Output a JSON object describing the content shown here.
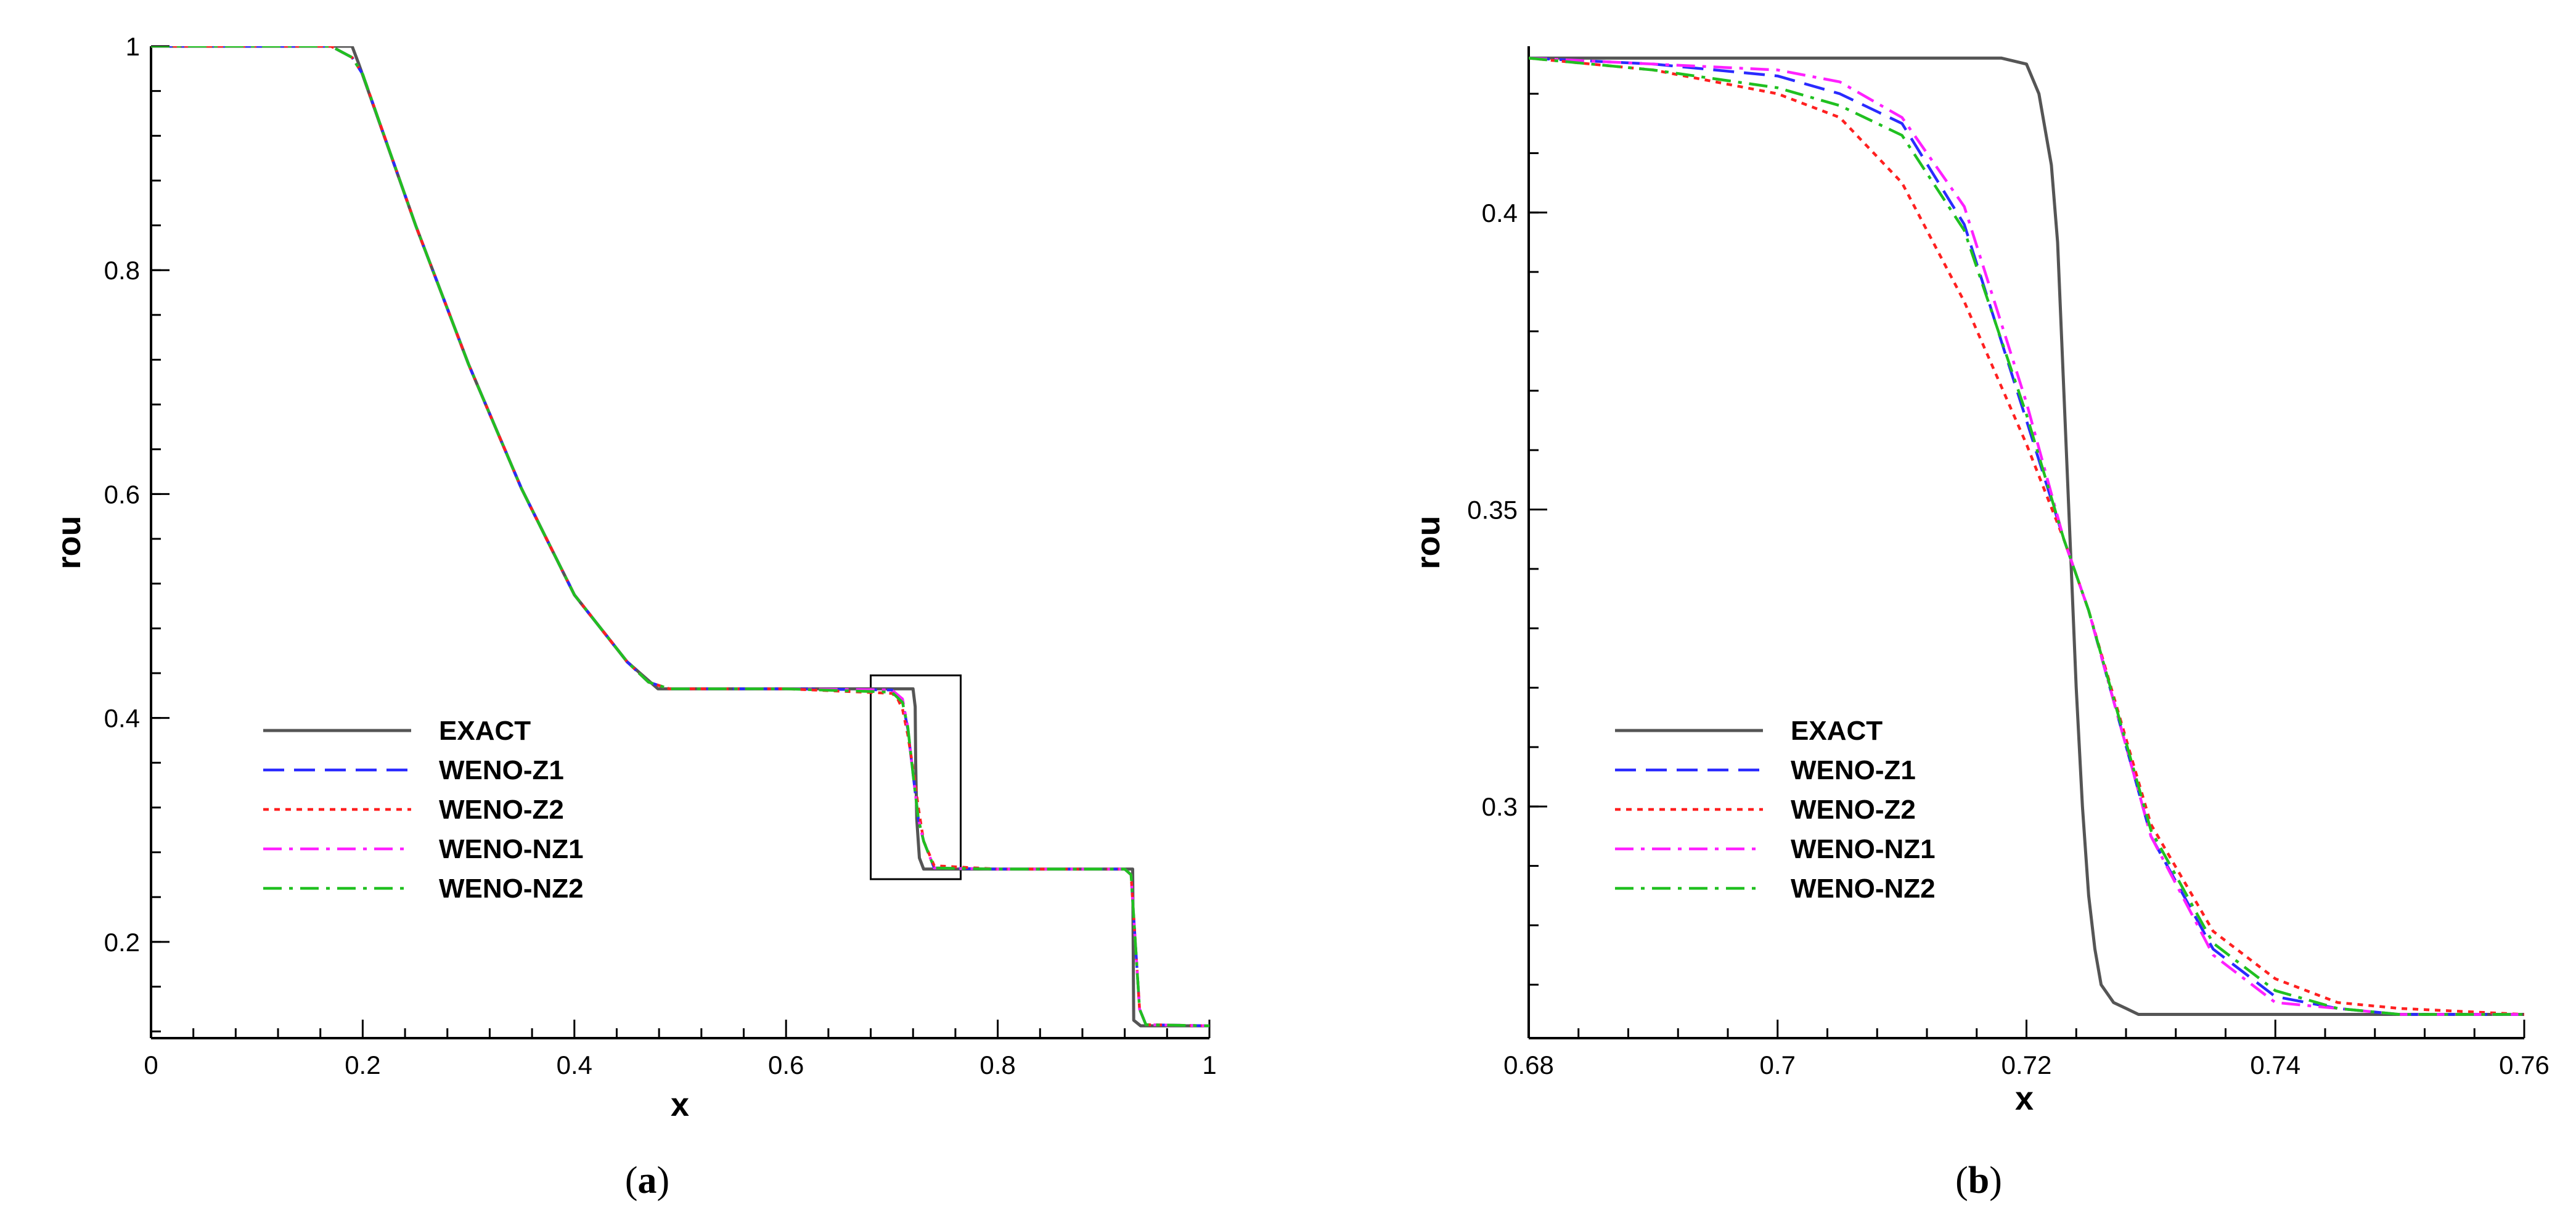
{
  "colors": {
    "EXACT": "#555555",
    "WENO-Z1": "#2a2aff",
    "WENO-Z2": "#ff2020",
    "WENO-NZ1": "#ff20ff",
    "WENO-NZ2": "#20c020"
  },
  "chart_data": [
    {
      "type": "line",
      "caption": {
        "open": "(",
        "letter": "a",
        "close": ")"
      },
      "xlabel": "x",
      "ylabel": "rou",
      "xlim": [
        0,
        1
      ],
      "ylim": [
        0.114,
        1.0
      ],
      "xticks": [
        0,
        0.2,
        0.4,
        0.6,
        0.8,
        1
      ],
      "xtick_labels": [
        "0",
        "0.2",
        "0.4",
        "0.6",
        "0.8",
        "1"
      ],
      "yticks": [
        0.2,
        0.4,
        0.6,
        0.8,
        1
      ],
      "ytick_labels": [
        "0.2",
        "0.4",
        "0.6",
        "0.8",
        "1"
      ],
      "legend_position": "lower-left",
      "inset_box": {
        "x": [
          0.68,
          0.765
        ],
        "y": [
          0.256,
          0.438
        ]
      },
      "series": [
        {
          "name": "EXACT",
          "style": "solid",
          "x": [
            0,
            0.19,
            0.196,
            0.25,
            0.3,
            0.35,
            0.4,
            0.45,
            0.479,
            0.5,
            0.6,
            0.72,
            0.722,
            0.7225,
            0.7235,
            0.726,
            0.73,
            0.8,
            0.92,
            0.9275,
            0.9285,
            0.935,
            1.0
          ],
          "y": [
            1.0,
            1.0,
            0.985,
            0.84,
            0.716,
            0.605,
            0.51,
            0.45,
            0.426,
            0.426,
            0.426,
            0.426,
            0.41,
            0.36,
            0.31,
            0.275,
            0.265,
            0.265,
            0.265,
            0.265,
            0.13,
            0.125,
            0.125
          ]
        },
        {
          "name": "WENO-Z1",
          "style": "dash",
          "x": [
            0,
            0.17,
            0.19,
            0.2,
            0.25,
            0.3,
            0.35,
            0.4,
            0.45,
            0.47,
            0.49,
            0.5,
            0.6,
            0.7,
            0.71,
            0.715,
            0.72,
            0.725,
            0.73,
            0.74,
            0.8,
            0.92,
            0.926,
            0.93,
            0.934,
            0.94,
            1.0
          ],
          "y": [
            1.0,
            1.0,
            0.99,
            0.975,
            0.84,
            0.716,
            0.605,
            0.51,
            0.45,
            0.432,
            0.426,
            0.426,
            0.426,
            0.425,
            0.415,
            0.39,
            0.35,
            0.31,
            0.29,
            0.266,
            0.265,
            0.265,
            0.26,
            0.2,
            0.14,
            0.126,
            0.125
          ]
        },
        {
          "name": "WENO-Z2",
          "style": "dot",
          "x": [
            0,
            0.17,
            0.19,
            0.2,
            0.25,
            0.3,
            0.35,
            0.4,
            0.45,
            0.47,
            0.49,
            0.5,
            0.6,
            0.7,
            0.705,
            0.71,
            0.715,
            0.72,
            0.725,
            0.73,
            0.74,
            0.8,
            0.92,
            0.926,
            0.93,
            0.934,
            0.94,
            1.0
          ],
          "y": [
            1.0,
            1.0,
            0.99,
            0.975,
            0.84,
            0.716,
            0.605,
            0.51,
            0.45,
            0.432,
            0.426,
            0.426,
            0.426,
            0.422,
            0.418,
            0.408,
            0.385,
            0.355,
            0.32,
            0.29,
            0.268,
            0.265,
            0.265,
            0.26,
            0.2,
            0.14,
            0.126,
            0.125
          ]
        },
        {
          "name": "WENO-NZ1",
          "style": "dashdot",
          "x": [
            0,
            0.17,
            0.19,
            0.2,
            0.25,
            0.3,
            0.35,
            0.4,
            0.45,
            0.47,
            0.49,
            0.5,
            0.6,
            0.7,
            0.71,
            0.715,
            0.72,
            0.725,
            0.73,
            0.74,
            0.8,
            0.92,
            0.926,
            0.93,
            0.934,
            0.94,
            1.0
          ],
          "y": [
            1.0,
            1.0,
            0.99,
            0.975,
            0.84,
            0.716,
            0.605,
            0.51,
            0.45,
            0.432,
            0.426,
            0.426,
            0.426,
            0.425,
            0.417,
            0.392,
            0.35,
            0.31,
            0.29,
            0.266,
            0.265,
            0.265,
            0.26,
            0.2,
            0.14,
            0.126,
            0.125
          ]
        },
        {
          "name": "WENO-NZ2",
          "style": "dashdot",
          "x": [
            0,
            0.17,
            0.19,
            0.2,
            0.25,
            0.3,
            0.35,
            0.4,
            0.45,
            0.47,
            0.49,
            0.5,
            0.6,
            0.7,
            0.71,
            0.715,
            0.72,
            0.725,
            0.73,
            0.74,
            0.8,
            0.92,
            0.926,
            0.93,
            0.934,
            0.94,
            1.0
          ],
          "y": [
            1.0,
            1.0,
            0.99,
            0.975,
            0.84,
            0.716,
            0.605,
            0.51,
            0.45,
            0.432,
            0.426,
            0.426,
            0.426,
            0.423,
            0.414,
            0.392,
            0.35,
            0.31,
            0.29,
            0.266,
            0.265,
            0.265,
            0.26,
            0.2,
            0.14,
            0.126,
            0.125
          ]
        }
      ]
    },
    {
      "type": "line",
      "caption": {
        "open": "(",
        "letter": "b",
        "close": ")"
      },
      "xlabel": "x",
      "ylabel": "rou",
      "xlim": [
        0.68,
        0.76
      ],
      "ylim": [
        0.261,
        0.428
      ],
      "xticks": [
        0.68,
        0.7,
        0.72,
        0.74,
        0.76
      ],
      "xtick_labels": [
        "0.68",
        "0.7",
        "0.72",
        "0.74",
        "0.76"
      ],
      "yticks": [
        0.3,
        0.35,
        0.4
      ],
      "ytick_labels": [
        "0.3",
        "0.35",
        "0.4"
      ],
      "legend_position": "lower-left",
      "series": [
        {
          "name": "EXACT",
          "style": "solid",
          "x": [
            0.68,
            0.7,
            0.715,
            0.718,
            0.72,
            0.721,
            0.722,
            0.7225,
            0.723,
            0.7235,
            0.724,
            0.7245,
            0.725,
            0.7255,
            0.726,
            0.727,
            0.728,
            0.729,
            0.73,
            0.74,
            0.76
          ],
          "y": [
            0.426,
            0.426,
            0.426,
            0.426,
            0.425,
            0.42,
            0.408,
            0.395,
            0.37,
            0.345,
            0.32,
            0.3,
            0.285,
            0.276,
            0.27,
            0.267,
            0.266,
            0.265,
            0.265,
            0.265,
            0.265
          ]
        },
        {
          "name": "WENO-Z1",
          "style": "dash",
          "x": [
            0.68,
            0.69,
            0.7,
            0.705,
            0.71,
            0.715,
            0.72,
            0.723,
            0.725,
            0.73,
            0.735,
            0.74,
            0.745,
            0.75,
            0.76
          ],
          "y": [
            0.426,
            0.425,
            0.423,
            0.42,
            0.415,
            0.398,
            0.365,
            0.345,
            0.333,
            0.295,
            0.276,
            0.268,
            0.266,
            0.265,
            0.265
          ]
        },
        {
          "name": "WENO-Z2",
          "style": "dot",
          "x": [
            0.68,
            0.69,
            0.7,
            0.705,
            0.71,
            0.715,
            0.72,
            0.723,
            0.725,
            0.73,
            0.735,
            0.74,
            0.745,
            0.75,
            0.76
          ],
          "y": [
            0.426,
            0.424,
            0.42,
            0.416,
            0.405,
            0.385,
            0.361,
            0.345,
            0.333,
            0.297,
            0.279,
            0.271,
            0.267,
            0.266,
            0.265
          ]
        },
        {
          "name": "WENO-NZ1",
          "style": "dashdot",
          "x": [
            0.68,
            0.69,
            0.7,
            0.705,
            0.71,
            0.715,
            0.72,
            0.723,
            0.725,
            0.73,
            0.735,
            0.74,
            0.745,
            0.75,
            0.76
          ],
          "y": [
            0.426,
            0.425,
            0.424,
            0.422,
            0.416,
            0.401,
            0.368,
            0.345,
            0.333,
            0.295,
            0.275,
            0.267,
            0.266,
            0.265,
            0.265
          ]
        },
        {
          "name": "WENO-NZ2",
          "style": "dashdot",
          "x": [
            0.68,
            0.69,
            0.7,
            0.705,
            0.71,
            0.715,
            0.72,
            0.723,
            0.725,
            0.73,
            0.735,
            0.74,
            0.745,
            0.75,
            0.76
          ],
          "y": [
            0.426,
            0.424,
            0.421,
            0.418,
            0.413,
            0.397,
            0.366,
            0.345,
            0.333,
            0.296,
            0.277,
            0.269,
            0.266,
            0.265,
            0.265
          ]
        }
      ]
    }
  ]
}
